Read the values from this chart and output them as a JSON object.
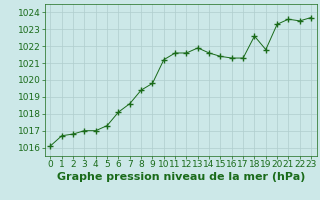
{
  "x": [
    0,
    1,
    2,
    3,
    4,
    5,
    6,
    7,
    8,
    9,
    10,
    11,
    12,
    13,
    14,
    15,
    16,
    17,
    18,
    19,
    20,
    21,
    22,
    23
  ],
  "y": [
    1016.1,
    1016.7,
    1016.8,
    1017.0,
    1017.0,
    1017.3,
    1018.1,
    1018.6,
    1019.4,
    1019.8,
    1021.2,
    1021.6,
    1021.6,
    1021.9,
    1021.6,
    1021.4,
    1021.3,
    1021.3,
    1022.6,
    1021.8,
    1023.3,
    1023.6,
    1023.5,
    1023.7
  ],
  "line_color": "#1a6b1a",
  "marker_color": "#1a6b1a",
  "bg_color": "#cce8e8",
  "grid_color": "#b0cece",
  "title": "Graphe pression niveau de la mer (hPa)",
  "xlim": [
    -0.5,
    23.5
  ],
  "ylim": [
    1015.5,
    1024.5
  ],
  "yticks": [
    1016,
    1017,
    1018,
    1019,
    1020,
    1021,
    1022,
    1023,
    1024
  ],
  "xticks": [
    0,
    1,
    2,
    3,
    4,
    5,
    6,
    7,
    8,
    9,
    10,
    11,
    12,
    13,
    14,
    15,
    16,
    17,
    18,
    19,
    20,
    21,
    22,
    23
  ],
  "title_fontsize": 8,
  "tick_fontsize": 6.5,
  "title_color": "#1a6b1a",
  "axes_color": "#1a6b1a"
}
